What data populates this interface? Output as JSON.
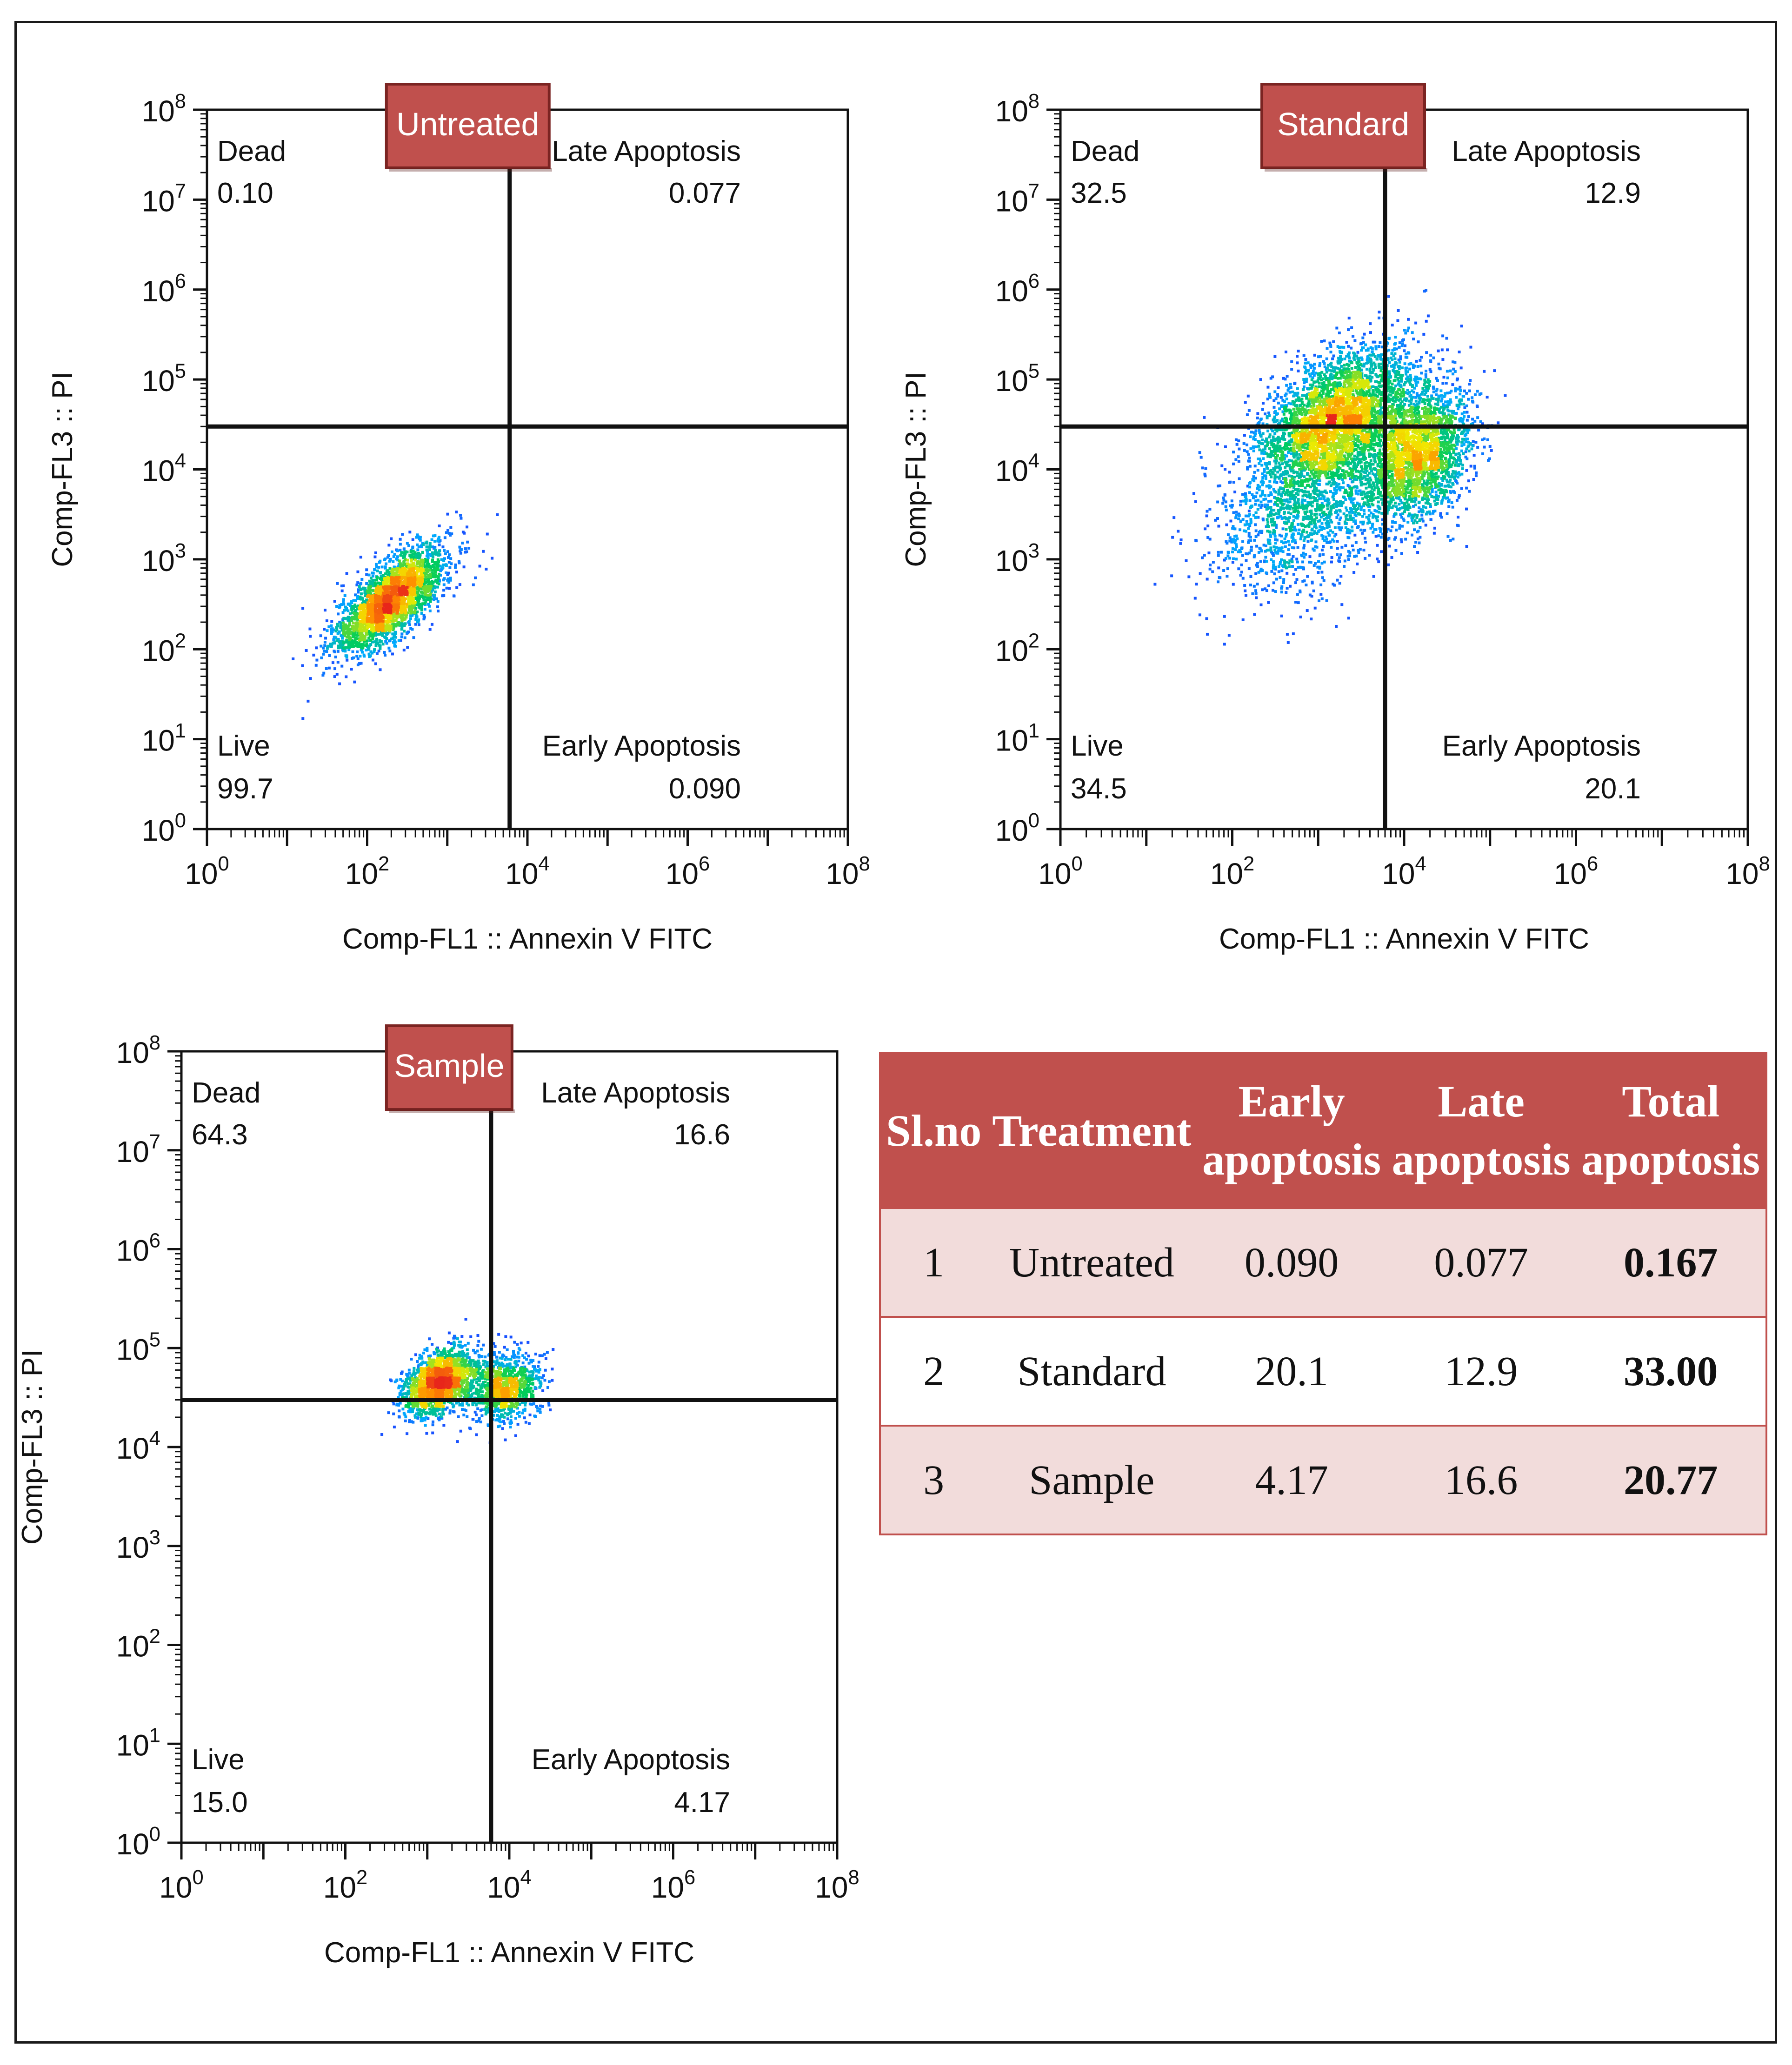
{
  "colors": {
    "tag_fill": "#c0504d",
    "tag_text": "#ffffff",
    "header_fill": "#c0504d",
    "row_odd": "#f2dcdb",
    "density_low": "#1f3bff",
    "density_high": "#e8261b"
  },
  "chart_data": [
    {
      "type": "scatter",
      "tag": "Untreated",
      "xlabel": "Comp-FL1 :: Annexin V FITC",
      "ylabel": "Comp-FL3 :: PI",
      "xscale": "log",
      "yscale": "log",
      "xlim": [
        1,
        100000000
      ],
      "ylim": [
        1,
        100000000
      ],
      "x_ticks": [
        "10^0",
        "10^2",
        "10^4",
        "10^6",
        "10^8"
      ],
      "y_ticks": [
        "10^0",
        "10^1",
        "10^2",
        "10^3",
        "10^4",
        "10^5",
        "10^6",
        "10^7",
        "10^8"
      ],
      "gate": {
        "x": 6000,
        "y": 30000
      },
      "quadrants": {
        "top_left": {
          "label": "Dead",
          "value": "0.10"
        },
        "top_right": {
          "label": "Late Apoptosis",
          "value": "0.077"
        },
        "bottom_left": {
          "label": "Live",
          "value": "99.7"
        },
        "bottom_right": {
          "label": "Early Apoptosis",
          "value": "0.090"
        }
      },
      "populations": [
        {
          "center_log_x": 2.3,
          "center_log_y": 2.55,
          "spread_x": 0.35,
          "spread_y": 0.3,
          "correlation": 0.7,
          "count": 2600
        }
      ]
    },
    {
      "type": "scatter",
      "tag": "Standard",
      "xlabel": "Comp-FL1 :: Annexin V FITC",
      "ylabel": "Comp-FL3 :: PI",
      "xscale": "log",
      "yscale": "log",
      "xlim": [
        1,
        100000000
      ],
      "ylim": [
        1,
        100000000
      ],
      "x_ticks": [
        "10^0",
        "10^2",
        "10^4",
        "10^6",
        "10^8"
      ],
      "y_ticks": [
        "10^0",
        "10^1",
        "10^2",
        "10^3",
        "10^4",
        "10^5",
        "10^6",
        "10^7",
        "10^8"
      ],
      "gate": {
        "x": 6000,
        "y": 30000
      },
      "quadrants": {
        "top_left": {
          "label": "Dead",
          "value": "32.5"
        },
        "top_right": {
          "label": "Late Apoptosis",
          "value": "12.9"
        },
        "bottom_left": {
          "label": "Live",
          "value": "34.5"
        },
        "bottom_right": {
          "label": "Early Apoptosis",
          "value": "20.1"
        }
      },
      "populations": [
        {
          "center_log_x": 3.2,
          "center_log_y": 4.6,
          "spread_x": 0.45,
          "spread_y": 0.38,
          "correlation": 0.5,
          "count": 3200
        },
        {
          "center_log_x": 4.15,
          "center_log_y": 4.15,
          "spread_x": 0.32,
          "spread_y": 0.38,
          "correlation": 0.3,
          "count": 2400
        },
        {
          "center_log_x": 2.95,
          "center_log_y": 3.7,
          "spread_x": 0.55,
          "spread_y": 0.55,
          "correlation": 0.5,
          "count": 1800
        }
      ]
    },
    {
      "type": "scatter",
      "tag": "Sample",
      "xlabel": "Comp-FL1 :: Annexin V FITC",
      "ylabel": "Comp-FL3 :: PI",
      "xscale": "log",
      "yscale": "log",
      "xlim": [
        1,
        100000000
      ],
      "ylim": [
        1,
        100000000
      ],
      "x_ticks": [
        "10^0",
        "10^2",
        "10^4",
        "10^6",
        "10^8"
      ],
      "y_ticks": [
        "10^0",
        "10^1",
        "10^2",
        "10^3",
        "10^4",
        "10^5",
        "10^6",
        "10^7",
        "10^8"
      ],
      "gate": {
        "x": 6000,
        "y": 30000
      },
      "quadrants": {
        "top_left": {
          "label": "Dead",
          "value": "64.3"
        },
        "top_right": {
          "label": "Late Apoptosis",
          "value": "16.6"
        },
        "bottom_left": {
          "label": "Live",
          "value": "15.0"
        },
        "bottom_right": {
          "label": "Early Apoptosis",
          "value": "4.17"
        }
      },
      "populations": [
        {
          "center_log_x": 3.15,
          "center_log_y": 4.65,
          "spread_x": 0.22,
          "spread_y": 0.17,
          "correlation": 0.4,
          "count": 1700
        },
        {
          "center_log_x": 3.95,
          "center_log_y": 4.6,
          "spread_x": 0.22,
          "spread_y": 0.17,
          "correlation": 0.2,
          "count": 1000
        }
      ]
    }
  ],
  "table": {
    "headers": [
      "Sl.no",
      "Treatment",
      "Early apoptosis",
      "Late apoptosis",
      "Total apoptosis"
    ],
    "header_lines": [
      [
        "Sl.no"
      ],
      [
        "Treatment"
      ],
      [
        "Early",
        "apoptosis"
      ],
      [
        "Late",
        "apoptosis"
      ],
      [
        "Total",
        "apoptosis"
      ]
    ],
    "rows": [
      {
        "sl": "1",
        "treatment": "Untreated",
        "early": "0.090",
        "late": "0.077",
        "total": "0.167"
      },
      {
        "sl": "2",
        "treatment": "Standard",
        "early": "20.1",
        "late": "12.9",
        "total": "33.00"
      },
      {
        "sl": "3",
        "treatment": "Sample",
        "early": "4.17",
        "late": "16.6",
        "total": "20.77"
      }
    ]
  }
}
